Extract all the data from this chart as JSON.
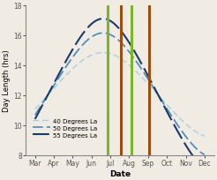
{
  "title": "",
  "xlabel": "Date",
  "ylabel": "Day Length (hrs)",
  "xlim": [
    -0.5,
    9.5
  ],
  "ylim": [
    8,
    18
  ],
  "x_tick_labels": [
    "Mar",
    "Apr",
    "May",
    "Jun",
    "Jul",
    "Aug",
    "Sep",
    "Oct",
    "Nov",
    "Dec"
  ],
  "yticks": [
    8,
    10,
    12,
    14,
    16,
    18
  ],
  "line_40_color": "#a8cfe0",
  "line_50_color": "#4a86b8",
  "line_55_color": "#1a3a6b",
  "vline_green1_x": 3.87,
  "vline_green2_x": 5.1,
  "vline_orange1_x": 4.55,
  "vline_orange2_x": 6.05,
  "vline_green_color": "#7db52a",
  "vline_orange_color": "#9b4e10",
  "legend_labels": [
    "40 Degrees La",
    "50 Degrees La",
    "55 Degrees La"
  ],
  "figsize": [
    2.46,
    2.05
  ],
  "dpi": 100,
  "bg_color": "#f0ece4"
}
